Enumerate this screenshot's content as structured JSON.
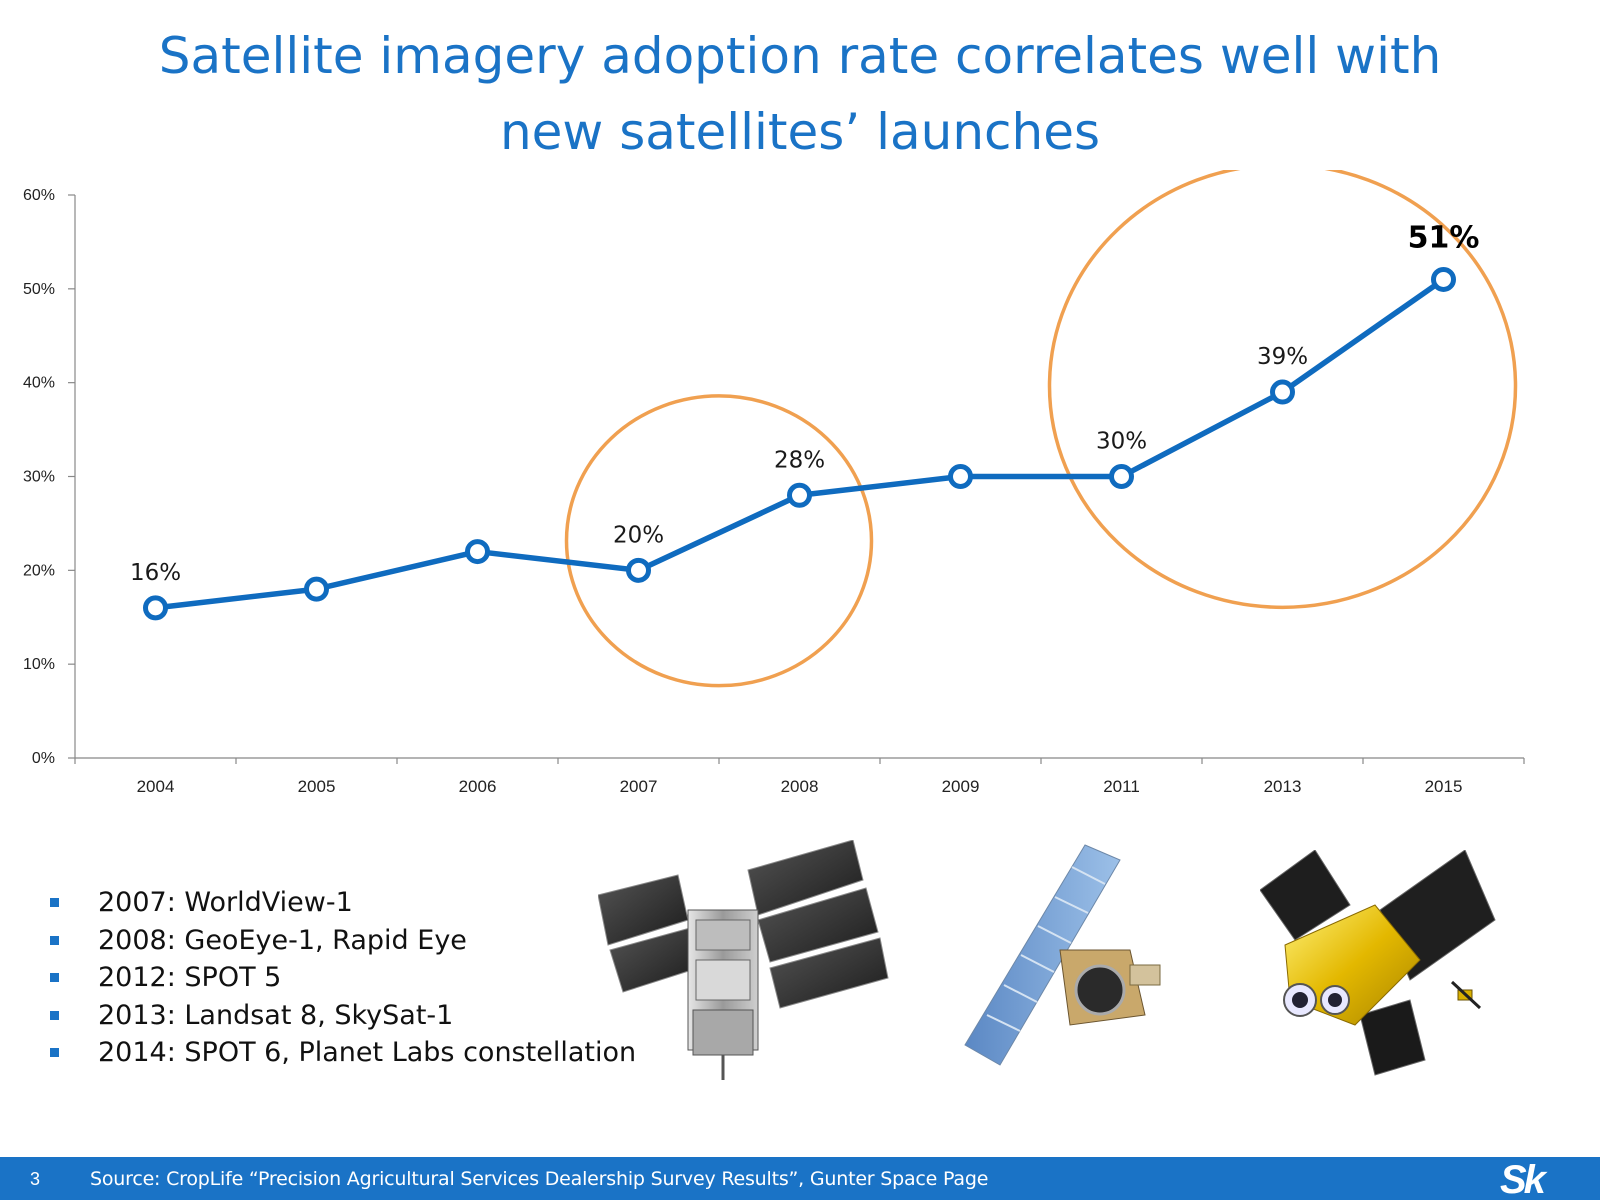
{
  "slide": {
    "title_line1": "Satellite imagery adoption rate correlates well with",
    "title_line2": "new satellites’ launches"
  },
  "chart_data": {
    "type": "line",
    "categories": [
      "2004",
      "2005",
      "2006",
      "2007",
      "2008",
      "2009",
      "2011",
      "2013",
      "2015"
    ],
    "values": [
      16,
      18,
      22,
      20,
      28,
      30,
      30,
      39,
      51
    ],
    "data_labels": [
      "16%",
      "",
      "",
      "20%",
      "28%",
      "",
      "30%",
      "39%",
      "51%"
    ],
    "highlighted_label": "51%",
    "yticks": [
      "0%",
      "10%",
      "20%",
      "30%",
      "40%",
      "50%",
      "60%"
    ],
    "ylim": [
      0,
      60
    ],
    "series_color": "#0f6bbf",
    "annotation_color": "#f0a050",
    "annotations": [
      {
        "type": "circle",
        "around_categories": [
          "2007",
          "2008"
        ]
      },
      {
        "type": "circle",
        "around_categories": [
          "2011",
          "2013",
          "2015"
        ]
      }
    ]
  },
  "launches": {
    "items": [
      "2007: WorldView-1",
      "2008: GeoEye-1, Rapid Eye",
      "2012: SPOT 5",
      "2013: Landsat 8, SkySat-1",
      "2014: SPOT 6, Planet Labs constellation"
    ]
  },
  "footer": {
    "page_number": "3",
    "source": "Source: CropLife “Precision Agricultural Services Dealership Survey Results”, Gunter Space Page",
    "logo": "Sk"
  },
  "colors": {
    "accent": "#1a73c6",
    "line": "#0f6bbf",
    "highlight": "#f0a050"
  }
}
